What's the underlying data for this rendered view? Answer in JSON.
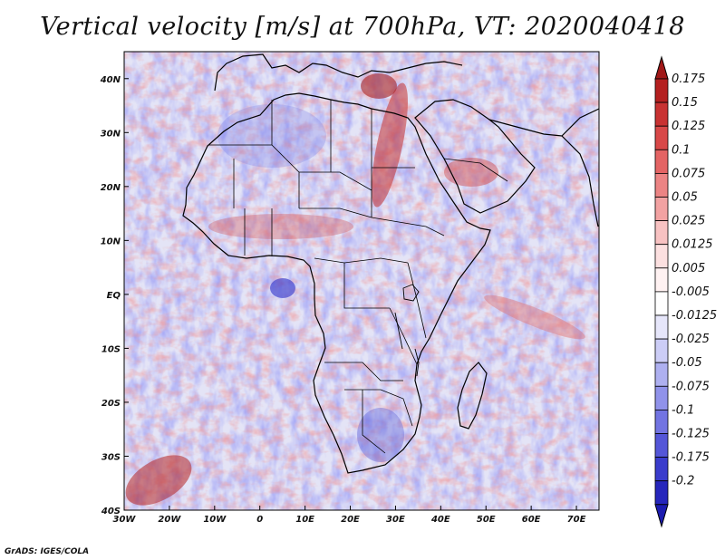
{
  "title": "Vertical velocity [m/s] at 700hPa, VT: 2020040418",
  "credit": "GrADS: IGES/COLA",
  "map": {
    "lon_range": [
      -30,
      75
    ],
    "lat_range": [
      -40,
      45
    ],
    "lon_ticks": [
      {
        "value": -30,
        "label": "30W"
      },
      {
        "value": -20,
        "label": "20W"
      },
      {
        "value": -10,
        "label": "10W"
      },
      {
        "value": 0,
        "label": "0"
      },
      {
        "value": 10,
        "label": "10E"
      },
      {
        "value": 20,
        "label": "20E"
      },
      {
        "value": 30,
        "label": "30E"
      },
      {
        "value": 40,
        "label": "40E"
      },
      {
        "value": 50,
        "label": "50E"
      },
      {
        "value": 60,
        "label": "60E"
      },
      {
        "value": 70,
        "label": "70E"
      }
    ],
    "lat_ticks": [
      {
        "value": 40,
        "label": "40N"
      },
      {
        "value": 30,
        "label": "30N"
      },
      {
        "value": 20,
        "label": "20N"
      },
      {
        "value": 10,
        "label": "10N"
      },
      {
        "value": 0,
        "label": "EQ"
      },
      {
        "value": -10,
        "label": "10S"
      },
      {
        "value": -20,
        "label": "20S"
      },
      {
        "value": -30,
        "label": "30S"
      },
      {
        "value": -40,
        "label": "40S"
      }
    ]
  },
  "colorbar": {
    "levels": [
      {
        "label": "0.175",
        "color": "#b42020"
      },
      {
        "label": "0.15",
        "color": "#c83232"
      },
      {
        "label": "0.125",
        "color": "#d84848"
      },
      {
        "label": "0.1",
        "color": "#e46464"
      },
      {
        "label": "0.075",
        "color": "#ec8484"
      },
      {
        "label": "0.05",
        "color": "#f2a2a2"
      },
      {
        "label": "0.025",
        "color": "#f8c2c2"
      },
      {
        "label": "0.0125",
        "color": "#fce0e0"
      },
      {
        "label": "0.005",
        "color": "#fff2f2"
      },
      {
        "label": "-0.005",
        "color": "#ffffff"
      },
      {
        "label": "-0.0125",
        "color": "#e6e6fa"
      },
      {
        "label": "-0.025",
        "color": "#cccdf6"
      },
      {
        "label": "-0.05",
        "color": "#aeb0f0"
      },
      {
        "label": "-0.075",
        "color": "#9092ea"
      },
      {
        "label": "-0.1",
        "color": "#7274e2"
      },
      {
        "label": "-0.125",
        "color": "#5456d8"
      },
      {
        "label": "-0.175",
        "color": "#3a3ccc"
      },
      {
        "label": "-0.2",
        "color": "#2626bc"
      }
    ],
    "top_color": "#a01818",
    "bottom_color": "#1c1cb0"
  }
}
